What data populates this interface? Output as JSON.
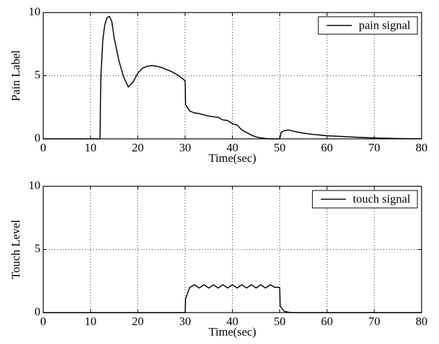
{
  "chart_data": [
    {
      "type": "line",
      "xlabel": "Time(sec)",
      "ylabel": "Pain Label",
      "x": [
        0,
        12,
        12.2,
        12.6,
        13,
        13.5,
        14,
        14.5,
        15,
        16,
        17,
        18,
        19,
        20,
        21,
        22,
        23,
        24,
        25,
        26,
        27,
        28,
        29,
        30,
        30.1,
        31,
        32,
        33,
        34,
        35,
        36,
        37,
        38,
        39,
        40,
        41,
        42,
        43,
        44,
        45,
        46,
        47,
        48,
        50,
        50.3,
        51,
        52,
        53,
        55,
        57,
        60,
        65,
        70,
        75,
        80
      ],
      "series": [
        {
          "name": "pain signal",
          "color": "#000000",
          "values": [
            0,
            0,
            5.0,
            7.8,
            9.0,
            9.6,
            9.7,
            9.3,
            8.0,
            6.2,
            4.9,
            4.1,
            4.5,
            5.2,
            5.6,
            5.75,
            5.8,
            5.75,
            5.65,
            5.5,
            5.35,
            5.15,
            4.9,
            4.6,
            2.7,
            2.2,
            2.05,
            2.0,
            1.9,
            1.8,
            1.75,
            1.7,
            1.5,
            1.45,
            1.2,
            1.1,
            0.7,
            0.5,
            0.3,
            0.15,
            0.08,
            0.03,
            0,
            0,
            0.5,
            0.65,
            0.7,
            0.6,
            0.45,
            0.35,
            0.25,
            0.15,
            0.07,
            0.03,
            0.01
          ]
        }
      ],
      "xlim": [
        0,
        80
      ],
      "xticks": [
        0,
        10,
        20,
        30,
        40,
        50,
        60,
        70,
        80
      ],
      "ylim": [
        0,
        10
      ],
      "yticks": [
        0,
        5,
        10
      ],
      "grid": true,
      "legend": "upper right"
    },
    {
      "type": "line",
      "xlabel": "Time(sec)",
      "ylabel": "Touch Level",
      "x": [
        0,
        30,
        30.1,
        31,
        32,
        33,
        34,
        35,
        36,
        37,
        38,
        39,
        40,
        41,
        42,
        43,
        44,
        45,
        46,
        47,
        48,
        49,
        50,
        50.1,
        51,
        52,
        53,
        80
      ],
      "series": [
        {
          "name": "touch signal",
          "color": "#000000",
          "values": [
            0,
            0,
            1.1,
            2.0,
            2.2,
            1.95,
            2.2,
            1.95,
            2.2,
            1.95,
            2.2,
            1.95,
            2.2,
            1.95,
            2.2,
            1.95,
            2.2,
            1.95,
            2.2,
            1.95,
            2.2,
            2.0,
            2.0,
            0.5,
            0.1,
            0.02,
            0,
            0
          ]
        }
      ],
      "xlim": [
        0,
        80
      ],
      "xticks": [
        0,
        10,
        20,
        30,
        40,
        50,
        60,
        70,
        80
      ],
      "ylim": [
        0,
        10
      ],
      "yticks": [
        0,
        5,
        10
      ],
      "grid": true,
      "legend": "upper right"
    }
  ]
}
